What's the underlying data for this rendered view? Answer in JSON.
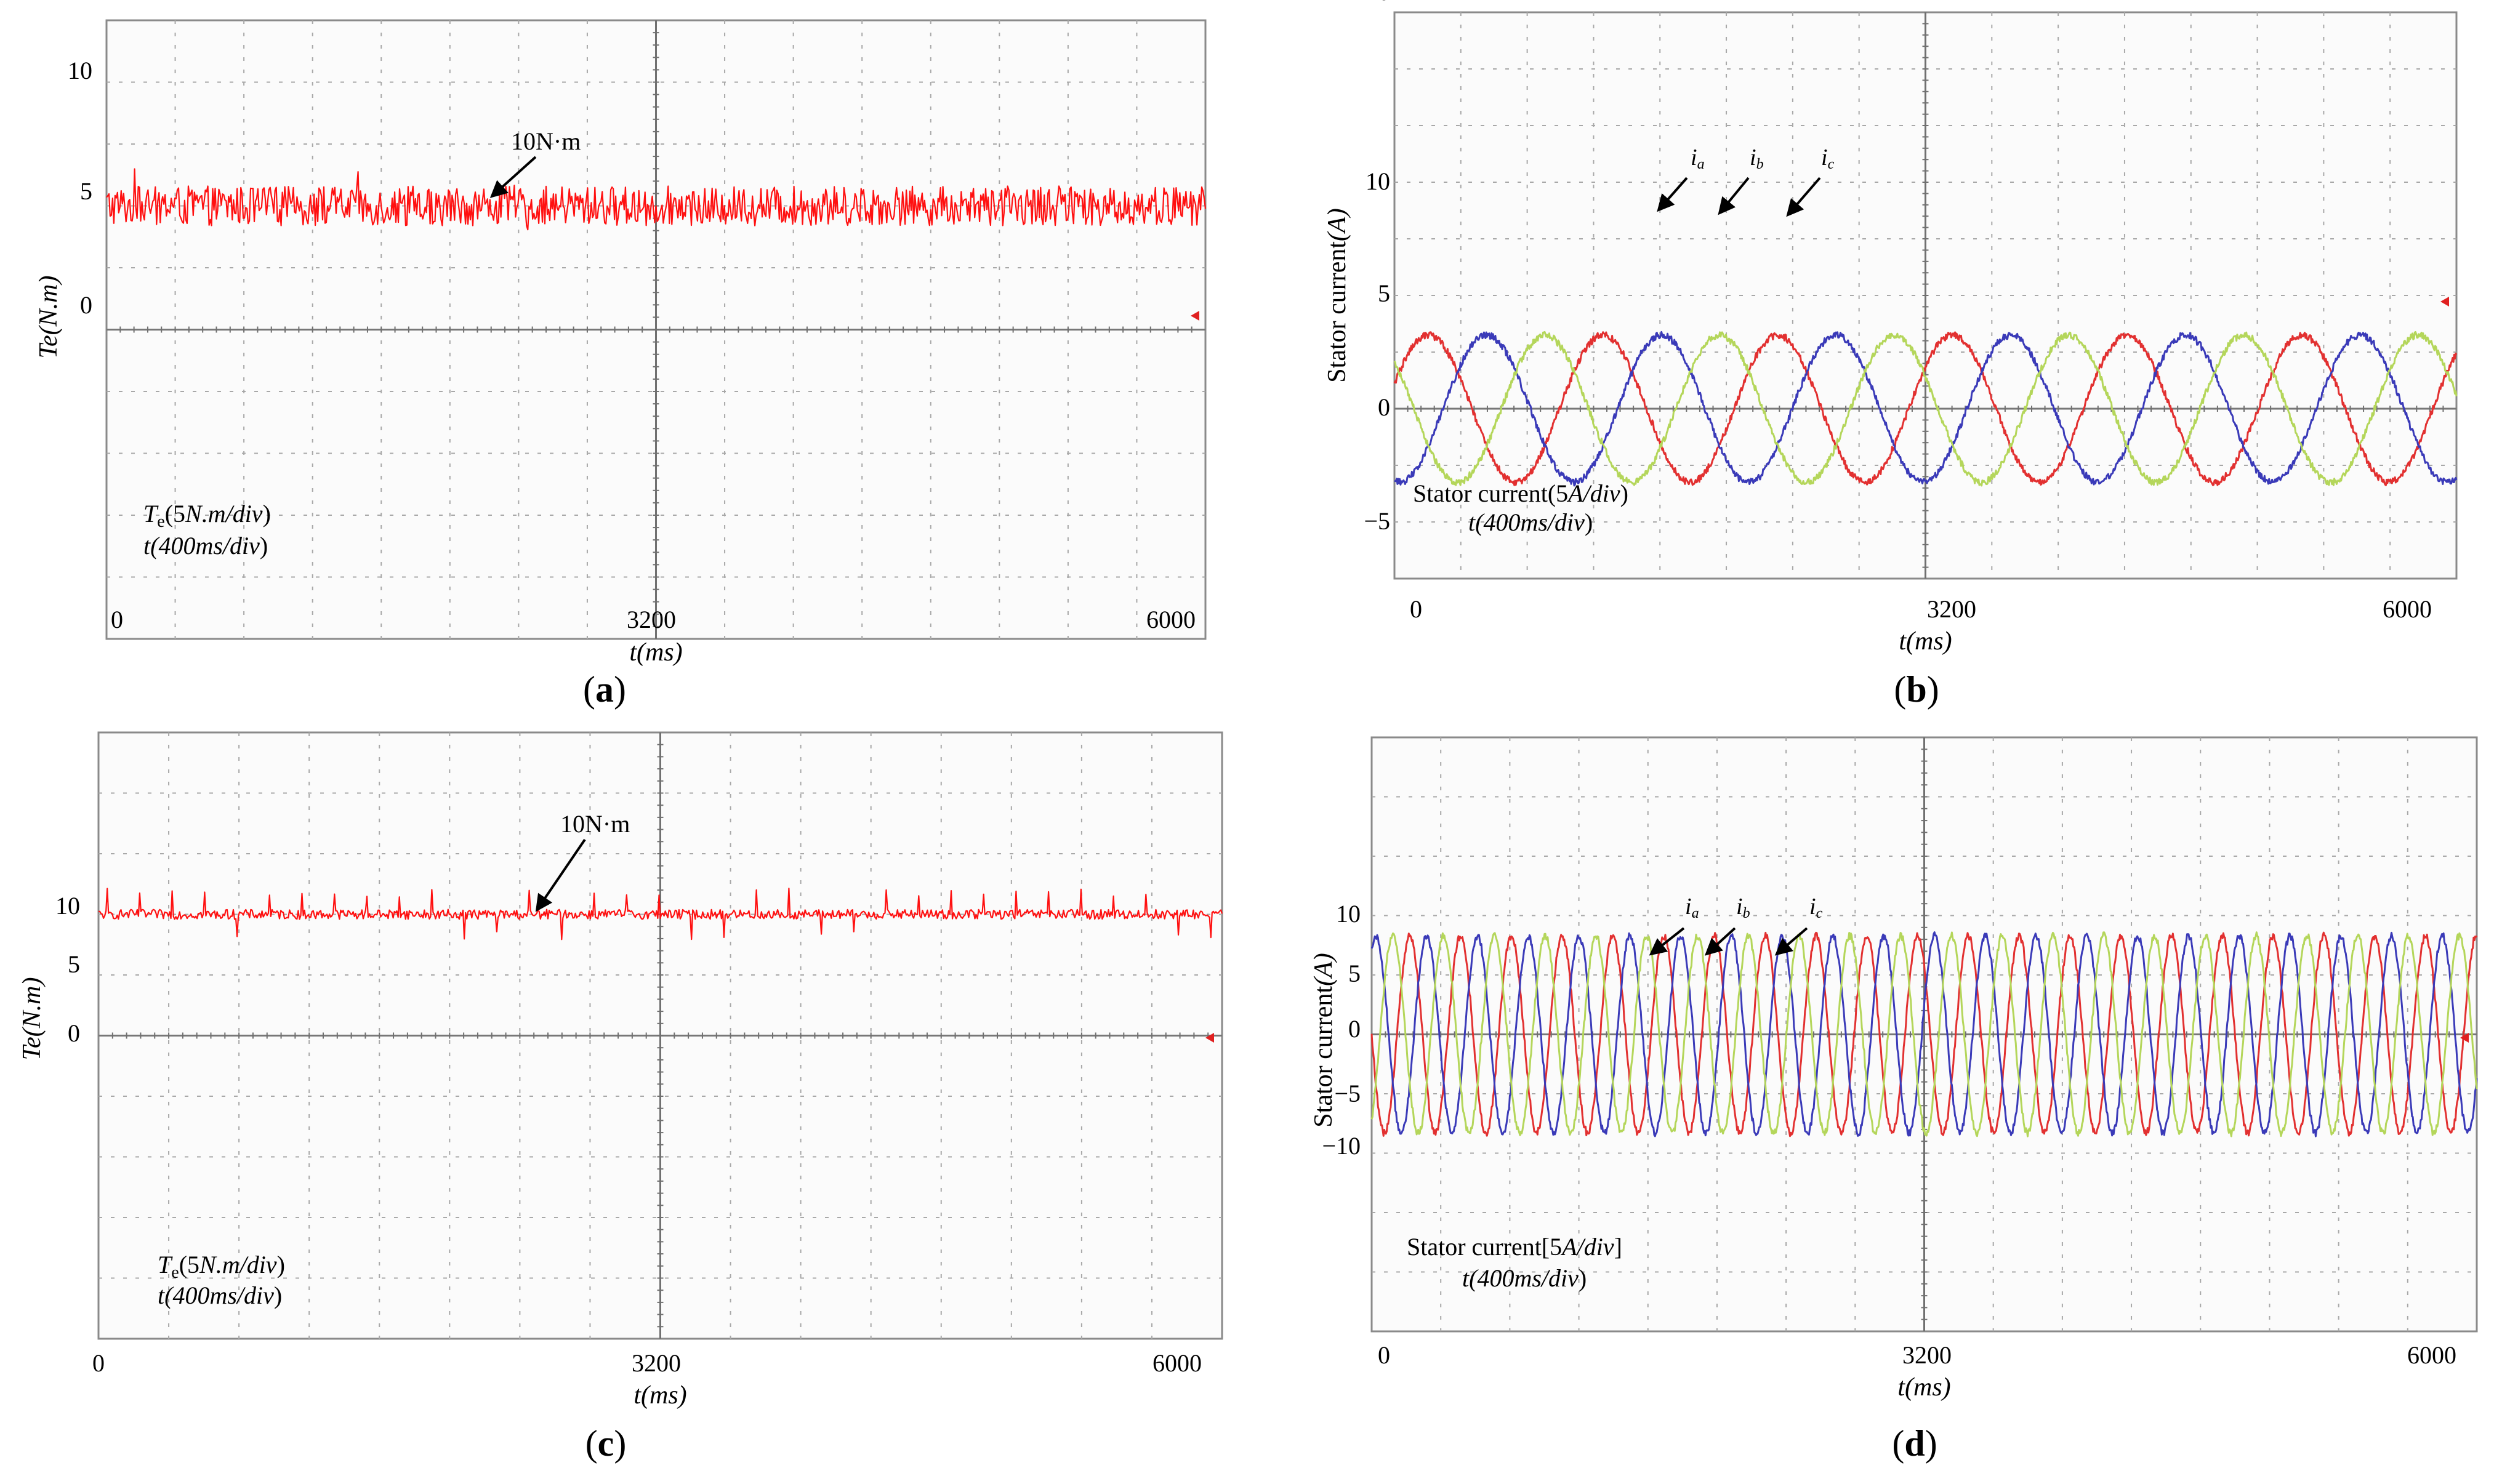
{
  "colors": {
    "ia": "#e23030",
    "ib": "#3a3ab8",
    "ic": "#b4d65a",
    "torque": "#ff1010",
    "grid": "#a8a8a8",
    "center": "#707070",
    "zero": "#777777",
    "marker": "#e02020"
  },
  "chart_data": [
    {
      "id": "a",
      "type": "line",
      "caption": "(a)",
      "caption_letter": "a",
      "ylabel_main": "Te",
      "ylabel_paren": "(N.m)",
      "xlabel_main": "t",
      "xlabel_paren": "(ms)",
      "x_ticks": [
        "0",
        "3200",
        "6000"
      ],
      "x_tick_values": [
        0,
        3200,
        6000
      ],
      "y_ticks": [
        "10",
        "5",
        "0"
      ],
      "y_tick_values": [
        10,
        5,
        0
      ],
      "xlim": [
        0,
        6400
      ],
      "ylim": [
        -25,
        15
      ],
      "y_per_div": 5,
      "x_per_div": 400,
      "info_line1_main": "T",
      "info_line1_sub": "e",
      "info_line1_rest": "(5",
      "info_line1_unit": "N.m/div",
      "info_line1_close": ")",
      "info_line2_main": "t(",
      "info_line2_unit": "400ms/div",
      "info_line2_close": ")",
      "annotation": "10N·m",
      "series": [
        {
          "name": "Te",
          "mean": 10,
          "ripple": 1.6,
          "spike_amp": 0,
          "color_key": "torque"
        }
      ]
    },
    {
      "id": "b",
      "type": "line",
      "caption": "(b)",
      "caption_letter": "b",
      "ylabel_main": "Stator current",
      "ylabel_paren": "(A)",
      "xlabel_main": "t",
      "xlabel_paren": "(ms)",
      "x_ticks": [
        "0",
        "3200",
        "6000"
      ],
      "x_tick_values": [
        0,
        3200,
        6000
      ],
      "y_ticks": [
        "10",
        "5",
        "0",
        "−5",
        "−10"
      ],
      "y_tick_values": [
        10,
        5,
        0,
        -5,
        -10
      ],
      "xlim": [
        0,
        6400
      ],
      "ylim": [
        -25,
        25
      ],
      "y_per_div": 5,
      "x_per_div": 400,
      "info_line1_main": "Stator current",
      "info_line1_rest": "(5",
      "info_line1_unit": "A/div",
      "info_line1_close": ")",
      "info_line2_main": "t(",
      "info_line2_unit": "400ms/div",
      "info_line2_close": ")",
      "phase_labels": [
        "i",
        "i",
        "i"
      ],
      "phase_subs": [
        "a",
        "b",
        "c"
      ],
      "series": [
        {
          "name": "ia",
          "amplitude": 6.5,
          "frequency_hz": 0.95,
          "phase_deg": 20,
          "color_key": "ia"
        },
        {
          "name": "ib",
          "amplitude": 6.5,
          "frequency_hz": 0.95,
          "phase_deg": -100,
          "color_key": "ib"
        },
        {
          "name": "ic",
          "amplitude": 6.5,
          "frequency_hz": 0.95,
          "phase_deg": 140,
          "color_key": "ic"
        }
      ]
    },
    {
      "id": "c",
      "type": "line",
      "caption": "(c)",
      "caption_letter": "c",
      "ylabel_main": "Te",
      "ylabel_paren": "(N.m)",
      "xlabel_main": "t",
      "xlabel_paren": "(ms)",
      "x_ticks": [
        "0",
        "3200",
        "6000"
      ],
      "x_tick_values": [
        0,
        3200,
        6000
      ],
      "y_ticks": [
        "10",
        "5",
        "0"
      ],
      "y_tick_values": [
        10,
        5,
        0
      ],
      "xlim": [
        0,
        6400
      ],
      "ylim": [
        -25,
        15
      ],
      "y_per_div": 5,
      "x_per_div": 400,
      "info_line1_main": "T",
      "info_line1_sub": "e",
      "info_line1_rest": "(5",
      "info_line1_unit": "N.m/div",
      "info_line1_close": ")",
      "info_line2_main": "t(",
      "info_line2_unit": "400ms/div",
      "info_line2_close": ")",
      "annotation": "10N·m",
      "series": [
        {
          "name": "Te",
          "mean": 10,
          "ripple": 0.4,
          "spike_amp": 1.8,
          "color_key": "torque"
        }
      ]
    },
    {
      "id": "d",
      "type": "line",
      "caption": "(d)",
      "caption_letter": "d",
      "ylabel_main": "Stator current",
      "ylabel_paren": "(A)",
      "xlabel_main": "t",
      "xlabel_paren": "(ms)",
      "x_ticks": [
        "0",
        "3200",
        "6000"
      ],
      "x_tick_values": [
        0,
        3200,
        6000
      ],
      "y_ticks": [
        "10",
        "5",
        "0",
        "−5",
        "−10"
      ],
      "y_tick_values": [
        10,
        5,
        0,
        -5,
        -10
      ],
      "xlim": [
        0,
        6400
      ],
      "ylim": [
        -30,
        20
      ],
      "y_per_div": 5,
      "x_per_div": 400,
      "info_line1_main": "Stator current[5",
      "info_line1_unit": "A/div",
      "info_line1_close": "]",
      "info_line2_main": "t(",
      "info_line2_unit": "400ms/div",
      "info_line2_close": ")",
      "phase_labels": [
        "i",
        "i",
        "i"
      ],
      "phase_subs": [
        "a",
        "b",
        "c"
      ],
      "series": [
        {
          "name": "ia",
          "amplitude": 8.3,
          "frequency_hz": 3.4,
          "phase_deg": 180,
          "color_key": "ia"
        },
        {
          "name": "ib",
          "amplitude": 8.3,
          "frequency_hz": 3.4,
          "phase_deg": 60,
          "color_key": "ib"
        },
        {
          "name": "ic",
          "amplitude": 8.3,
          "frequency_hz": 3.4,
          "phase_deg": -60,
          "color_key": "ic"
        }
      ]
    }
  ]
}
